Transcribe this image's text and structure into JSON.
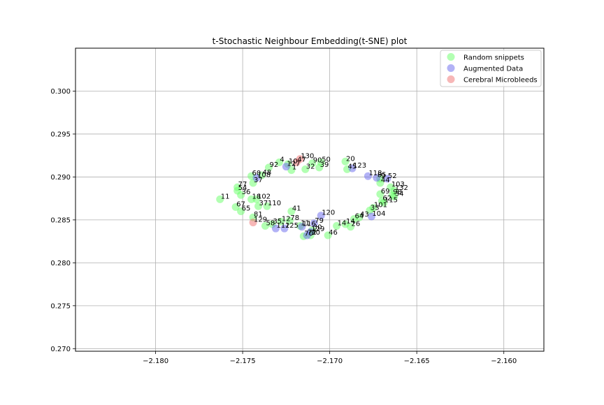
{
  "chart_data": {
    "type": "scatter",
    "title": "t-Stochastic Neighbour Embedding(t-SNE) plot",
    "xlabel": "",
    "ylabel": "",
    "xlim": [
      -2.1846,
      -2.1577
    ],
    "ylim": [
      0.2697,
      0.305
    ],
    "xticks": [
      -2.18,
      -2.175,
      -2.17,
      -2.165,
      -2.16
    ],
    "xtick_labels": [
      "−2.180",
      "−2.175",
      "−2.170",
      "−2.165",
      "−2.160"
    ],
    "yticks": [
      0.27,
      0.275,
      0.28,
      0.285,
      0.29,
      0.295,
      0.3
    ],
    "ytick_labels": [
      "0.270",
      "0.275",
      "0.280",
      "0.285",
      "0.290",
      "0.295",
      "0.300"
    ],
    "grid": true,
    "legend": {
      "placement": "top-right",
      "entries": [
        {
          "label": "Random snippets",
          "color": "#66ff66"
        },
        {
          "label": "Augmented Data",
          "color": "#6666ee"
        },
        {
          "label": "Cerebral Microbleeds",
          "color": "#f07070"
        }
      ]
    },
    "series": [
      {
        "name": "Random snippets",
        "color": "#66ff66",
        "points": [
          {
            "label": "4",
            "x": -2.1729,
            "y": 0.2917
          },
          {
            "label": "10",
            "x": -2.1724,
            "y": 0.2915
          },
          {
            "label": "92",
            "x": -2.1735,
            "y": 0.2911
          },
          {
            "label": "1",
            "x": -2.1722,
            "y": 0.2908
          },
          {
            "label": "32",
            "x": -2.1714,
            "y": 0.2909
          },
          {
            "label": "90",
            "x": -2.171,
            "y": 0.2916
          },
          {
            "label": "50",
            "x": -2.1705,
            "y": 0.2917
          },
          {
            "label": "39",
            "x": -2.1706,
            "y": 0.2911
          },
          {
            "label": "60",
            "x": -2.1745,
            "y": 0.2901
          },
          {
            "label": "48",
            "x": -2.1739,
            "y": 0.2902
          },
          {
            "label": "37",
            "x": -2.1744,
            "y": 0.2893
          },
          {
            "label": "77",
            "x": -2.1753,
            "y": 0.2888
          },
          {
            "label": "54",
            "x": -2.1753,
            "y": 0.2884
          },
          {
            "label": "36",
            "x": -2.1751,
            "y": 0.2879
          },
          {
            "label": "18",
            "x": -2.1745,
            "y": 0.2874
          },
          {
            "label": "11",
            "x": -2.1763,
            "y": 0.2874
          },
          {
            "label": "102",
            "x": -2.1742,
            "y": 0.2874
          },
          {
            "label": "67",
            "x": -2.1754,
            "y": 0.2865
          },
          {
            "label": "65",
            "x": -2.1751,
            "y": 0.286
          },
          {
            "label": "37",
            "x": -2.1741,
            "y": 0.2866
          },
          {
            "label": "110",
            "x": -2.1736,
            "y": 0.2866
          },
          {
            "label": "41",
            "x": -2.1722,
            "y": 0.286
          },
          {
            "label": "81",
            "x": -2.1744,
            "y": 0.2853
          },
          {
            "label": "58",
            "x": -2.1737,
            "y": 0.2843
          },
          {
            "label": "35",
            "x": -2.1733,
            "y": 0.2845
          },
          {
            "label": "12",
            "x": -2.1728,
            "y": 0.2848
          },
          {
            "label": "78",
            "x": -2.1723,
            "y": 0.2849
          },
          {
            "label": "11",
            "x": -2.1717,
            "y": 0.2843
          },
          {
            "label": "30",
            "x": -2.171,
            "y": 0.2838
          },
          {
            "label": "70",
            "x": -2.1715,
            "y": 0.2831
          },
          {
            "label": "30",
            "x": -2.1711,
            "y": 0.2832
          },
          {
            "label": "46",
            "x": -2.1701,
            "y": 0.2832
          },
          {
            "label": "14",
            "x": -2.1696,
            "y": 0.2843
          },
          {
            "label": "14",
            "x": -2.1691,
            "y": 0.2845
          },
          {
            "label": "26",
            "x": -2.1688,
            "y": 0.2842
          },
          {
            "label": "64",
            "x": -2.1686,
            "y": 0.2851
          },
          {
            "label": "43",
            "x": -2.1683,
            "y": 0.2853
          },
          {
            "label": "20",
            "x": -2.1691,
            "y": 0.2918
          },
          {
            "label": "45",
            "x": -2.169,
            "y": 0.2909
          },
          {
            "label": "9",
            "x": -2.1671,
            "y": 0.2898
          },
          {
            "label": "44",
            "x": -2.1671,
            "y": 0.2893
          },
          {
            "label": "103",
            "x": -2.1665,
            "y": 0.2888
          },
          {
            "label": "132",
            "x": -2.1663,
            "y": 0.2884
          },
          {
            "label": "98",
            "x": -2.1664,
            "y": 0.2879
          },
          {
            "label": "34",
            "x": -2.1663,
            "y": 0.2877
          },
          {
            "label": "69",
            "x": -2.1671,
            "y": 0.288
          },
          {
            "label": "62",
            "x": -2.167,
            "y": 0.2872
          },
          {
            "label": "115",
            "x": -2.1669,
            "y": 0.287
          },
          {
            "label": "101",
            "x": -2.1675,
            "y": 0.2864
          },
          {
            "label": "33",
            "x": -2.1677,
            "y": 0.2861
          }
        ]
      },
      {
        "name": "Augmented Data",
        "color": "#6666ee",
        "points": [
          {
            "label": "127",
            "x": -2.1725,
            "y": 0.2912
          },
          {
            "label": "108",
            "x": -2.1742,
            "y": 0.2899
          },
          {
            "label": "120",
            "x": -2.1705,
            "y": 0.2855
          },
          {
            "label": "79",
            "x": -2.1709,
            "y": 0.2846
          },
          {
            "label": "116",
            "x": -2.1716,
            "y": 0.2842
          },
          {
            "label": "112",
            "x": -2.1731,
            "y": 0.284
          },
          {
            "label": "125",
            "x": -2.1726,
            "y": 0.284
          },
          {
            "label": "123",
            "x": -2.1687,
            "y": 0.291
          },
          {
            "label": "118",
            "x": -2.1678,
            "y": 0.2901
          },
          {
            "label": "85",
            "x": -2.1673,
            "y": 0.2899
          },
          {
            "label": "52",
            "x": -2.1667,
            "y": 0.2898
          },
          {
            "label": "104",
            "x": -2.1676,
            "y": 0.2854
          },
          {
            "label": "129",
            "x": -2.1711,
            "y": 0.2836
          },
          {
            "label": "72",
            "x": -2.1713,
            "y": 0.2832
          }
        ]
      },
      {
        "name": "Cerebral Microbleeds",
        "color": "#f07070",
        "points": [
          {
            "label": "130",
            "x": -2.1717,
            "y": 0.2921
          },
          {
            "label": "47",
            "x": -2.1719,
            "y": 0.2917
          },
          {
            "label": "129",
            "x": -2.1744,
            "y": 0.2847
          }
        ]
      }
    ]
  }
}
